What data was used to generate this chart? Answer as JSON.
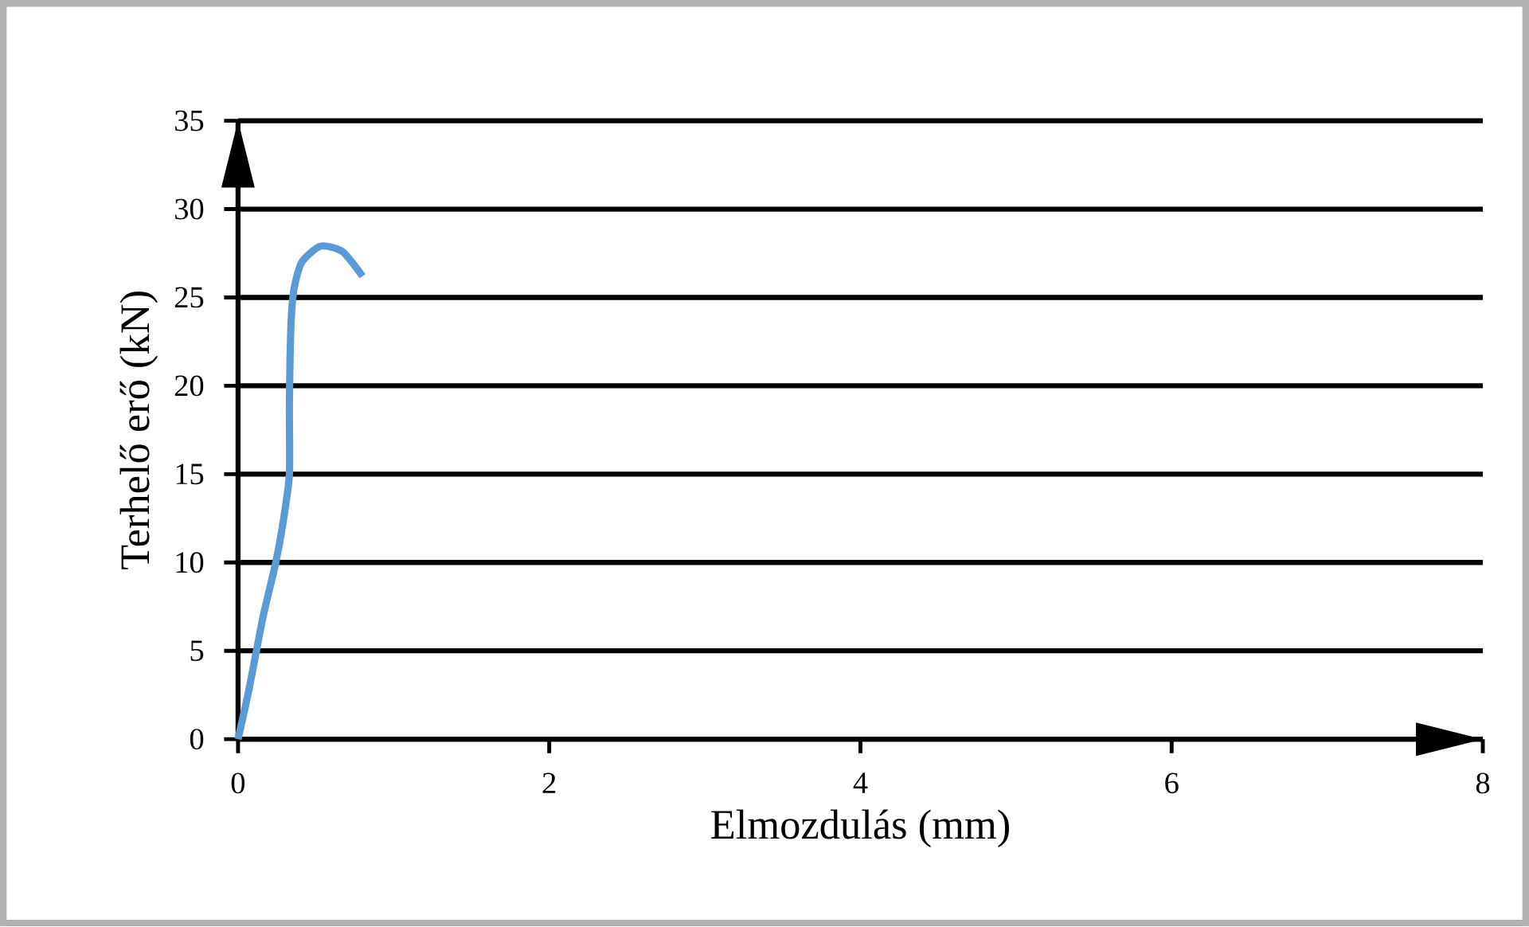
{
  "chart_data": {
    "type": "line",
    "xlabel": "Elmozdulás (mm)",
    "ylabel": "Terhelő erő (kN)",
    "xlim": [
      0,
      8
    ],
    "xticks": [
      0,
      2,
      4,
      6,
      8
    ],
    "ylim": [
      0,
      35
    ],
    "yticks": [
      0,
      5,
      10,
      15,
      20,
      25,
      30,
      35
    ],
    "grid": "y",
    "series": [
      {
        "color": "#5b9bd5",
        "x": [
          0,
          0.07,
          0.16,
          0.24,
          0.29,
          0.33,
          0.33,
          0.34,
          0.36,
          0.41,
          0.53,
          0.67,
          0.8
        ],
        "values": [
          0,
          2.8,
          6.9,
          9.9,
          12.3,
          15.0,
          18.9,
          23.4,
          25.5,
          27.0,
          27.9,
          27.6,
          26.2
        ]
      }
    ]
  }
}
